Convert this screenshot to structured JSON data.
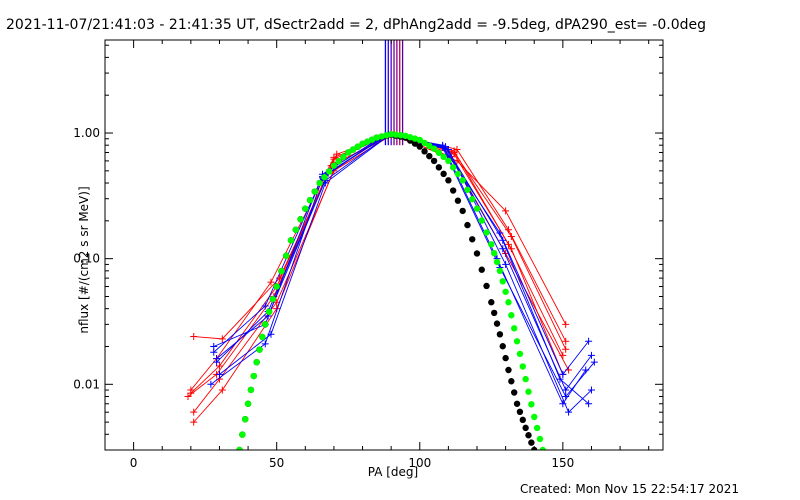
{
  "page": {
    "title": "2021-11-07/21:41:03 - 21:41:35 UT, dSectr2add = 2, dPhAng2add = -9.5deg, dPA290_est= -0.0deg",
    "footer": "Created: Mon Nov 15 22:54:17 2021"
  },
  "chart_data": {
    "type": "line",
    "title": "2021-11-07/21:41:03 - 21:41:35 UT, dSectr2add = 2, dPhAng2add = -9.5deg, dPA290_est= -0.0deg",
    "xlabel": "PA [deg]",
    "ylabel": "nflux [#/(cm2 s sr MeV)]",
    "xlim": [
      -10,
      185
    ],
    "ylim": [
      0.003,
      5.5
    ],
    "yscale": "log",
    "xticks": [
      0,
      50,
      100,
      150
    ],
    "xtick_labels": [
      "0",
      "50",
      "100",
      "150"
    ],
    "yticks": [
      0.01,
      0.1,
      1.0
    ],
    "ytick_labels": [
      "0.01",
      "0.10",
      "1.00"
    ],
    "grid": false,
    "legend": "none",
    "series": [
      {
        "color": "#ff0000",
        "marker": "+",
        "x": [
          20,
          30,
          50,
          70,
          90,
          112,
          132,
          151
        ],
        "y": [
          0.0085,
          0.014,
          0.06,
          0.62,
          0.98,
          0.7,
          0.15,
          0.019
        ]
      },
      {
        "color": "#ff0000",
        "marker": "+",
        "x": [
          21,
          31,
          51,
          71,
          91,
          113,
          130,
          151
        ],
        "y": [
          0.024,
          0.023,
          0.07,
          0.68,
          0.97,
          0.6,
          0.24,
          0.03
        ]
      },
      {
        "color": "#ff0000",
        "marker": "+",
        "x": [
          19,
          29,
          49,
          69,
          91,
          112,
          131,
          150
        ],
        "y": [
          0.008,
          0.012,
          0.05,
          0.55,
          0.97,
          0.72,
          0.13,
          0.017
        ]
      },
      {
        "color": "#ff0000",
        "marker": "+",
        "x": [
          21,
          30,
          50,
          70,
          90,
          111,
          130,
          152
        ],
        "y": [
          0.006,
          0.011,
          0.045,
          0.5,
          0.96,
          0.65,
          0.11,
          0.013
        ]
      },
      {
        "color": "#ff0000",
        "marker": "+",
        "x": [
          20,
          29,
          48,
          70,
          91,
          113,
          131,
          151
        ],
        "y": [
          0.009,
          0.016,
          0.065,
          0.64,
          0.98,
          0.74,
          0.17,
          0.022
        ]
      },
      {
        "color": "#ff0000",
        "marker": "+",
        "x": [
          21,
          31,
          50,
          71,
          90,
          112,
          132,
          150
        ],
        "y": [
          0.005,
          0.009,
          0.04,
          0.58,
          0.97,
          0.68,
          0.12,
          0.012
        ]
      },
      {
        "color": "#0000ff",
        "marker": "+",
        "x": [
          28,
          46,
          66,
          88,
          108,
          128,
          150,
          159
        ],
        "y": [
          0.018,
          0.042,
          0.45,
          0.95,
          0.78,
          0.16,
          0.012,
          0.022
        ]
      },
      {
        "color": "#0000ff",
        "marker": "+",
        "x": [
          29,
          47,
          67,
          89,
          109,
          129,
          151,
          160
        ],
        "y": [
          0.015,
          0.038,
          0.42,
          0.96,
          0.76,
          0.12,
          0.009,
          0.017
        ]
      },
      {
        "color": "#0000ff",
        "marker": "+",
        "x": [
          28,
          46,
          66,
          88,
          108,
          127,
          150,
          158
        ],
        "y": [
          0.02,
          0.03,
          0.47,
          0.97,
          0.8,
          0.1,
          0.007,
          0.013
        ]
      },
      {
        "color": "#0000ff",
        "marker": "+",
        "x": [
          30,
          48,
          67,
          89,
          110,
          130,
          152,
          160
        ],
        "y": [
          0.012,
          0.025,
          0.4,
          0.95,
          0.74,
          0.09,
          0.006,
          0.009
        ]
      },
      {
        "color": "#0000ff",
        "marker": "+",
        "x": [
          27,
          46,
          66,
          88,
          109,
          129,
          149,
          159
        ],
        "y": [
          0.01,
          0.021,
          0.44,
          0.96,
          0.78,
          0.14,
          0.011,
          0.007
        ]
      },
      {
        "color": "#0000ff",
        "marker": "+",
        "x": [
          29,
          47,
          68,
          89,
          108,
          128,
          151,
          161
        ],
        "y": [
          0.016,
          0.035,
          0.48,
          0.97,
          0.77,
          0.085,
          0.008,
          0.015
        ]
      },
      {
        "color": "#000000",
        "marker": "dot",
        "x": [
          37,
          40,
          43,
          46,
          50,
          55,
          60,
          65,
          70,
          75,
          80,
          85,
          90,
          95,
          100,
          105,
          110,
          115,
          120,
          125,
          128,
          131,
          134,
          137,
          140
        ],
        "y": [
          0.003,
          0.007,
          0.015,
          0.03,
          0.06,
          0.14,
          0.25,
          0.4,
          0.55,
          0.7,
          0.82,
          0.92,
          0.97,
          0.92,
          0.78,
          0.6,
          0.42,
          0.24,
          0.11,
          0.045,
          0.025,
          0.013,
          0.007,
          0.0045,
          0.003
        ]
      },
      {
        "color": "#00ff00",
        "marker": "dot",
        "x": [
          37,
          40,
          43,
          46,
          50,
          55,
          60,
          65,
          70,
          75,
          80,
          85,
          90,
          95,
          100,
          105,
          110,
          115,
          120,
          125,
          128,
          131,
          134,
          137,
          140,
          143
        ],
        "y": [
          0.003,
          0.007,
          0.015,
          0.03,
          0.06,
          0.14,
          0.25,
          0.4,
          0.55,
          0.7,
          0.82,
          0.92,
          0.98,
          0.95,
          0.88,
          0.75,
          0.6,
          0.42,
          0.25,
          0.13,
          0.08,
          0.045,
          0.022,
          0.011,
          0.0055,
          0.003
        ]
      }
    ],
    "vertical_lines": {
      "x": [
        88,
        89,
        90,
        91,
        92,
        93,
        94
      ],
      "y_from": 0.8,
      "y_to": 5.5,
      "colors": [
        "#0000ff",
        "#3000e0",
        "#5000c0",
        "#7000a0",
        "#900080",
        "#b00060",
        "#600090"
      ]
    }
  }
}
